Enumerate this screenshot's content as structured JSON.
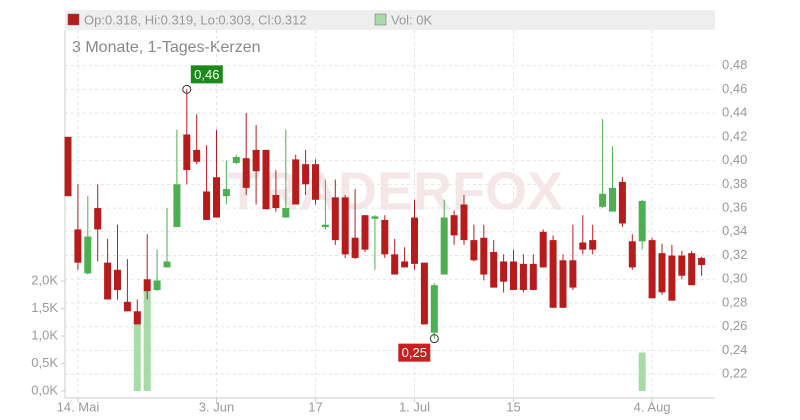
{
  "chart_data": {
    "type": "candlestick",
    "title": "3 Monate, 1-Tages-Kerzen",
    "legend": [
      "Op:0.318, Hi:0.319, Lo:0.303, Cl:0.312",
      "Vol: 0K"
    ],
    "watermark": "TRADERFOX",
    "up_color": "#4caf50",
    "down_color": "#b71c1c",
    "volume_color": "#a8dba8",
    "grid": true,
    "categories": [
      null,
      "14. Mai",
      null,
      null,
      null,
      null,
      null,
      null,
      null,
      null,
      null,
      null,
      null,
      null,
      null,
      "3. Jun",
      null,
      null,
      null,
      null,
      null,
      null,
      null,
      null,
      null,
      "17",
      null,
      null,
      null,
      null,
      null,
      null,
      null,
      null,
      null,
      "1. Jul",
      null,
      null,
      null,
      null,
      null,
      null,
      null,
      null,
      null,
      "15",
      null,
      null,
      null,
      null,
      null,
      null,
      null,
      null,
      null,
      null,
      null,
      null,
      null,
      "4. Aug",
      null,
      null,
      null,
      null,
      null
    ],
    "series": [
      {
        "name": "Open",
        "values": [
          0.42,
          0.342,
          0.305,
          0.36,
          0.314,
          0.308,
          0.281,
          0.273,
          0.3,
          0.291,
          0.31,
          0.344,
          0.422,
          0.409,
          0.374,
          0.386,
          0.37,
          0.398,
          0.402,
          0.409,
          0.409,
          0.371,
          0.352,
          0.401,
          0.397,
          0.397,
          0.344,
          0.369,
          0.369,
          0.335,
          0.354,
          0.351,
          0.35,
          0.321,
          0.315,
          0.352,
          0.314,
          0.255,
          0.304,
          0.354,
          0.363,
          0.333,
          0.335,
          0.323,
          0.315,
          0.315,
          0.313,
          0.313,
          0.34,
          0.333,
          0.316,
          0.316,
          0.331,
          0.333,
          0.361,
          0.357,
          0.382,
          0.332,
          0.332,
          0.333,
          0.322,
          0.32,
          0.32,
          0.322,
          0.318
        ]
      },
      {
        "name": "High",
        "values": [
          0.42,
          0.38,
          0.37,
          0.38,
          0.334,
          0.346,
          0.317,
          0.283,
          0.338,
          0.325,
          0.36,
          0.426,
          0.46,
          0.439,
          0.413,
          0.426,
          0.4,
          0.405,
          0.44,
          0.43,
          0.409,
          0.392,
          0.426,
          0.405,
          0.409,
          0.401,
          0.384,
          0.384,
          0.371,
          0.376,
          0.354,
          0.354,
          0.354,
          0.334,
          0.327,
          0.367,
          0.314,
          0.297,
          0.367,
          0.358,
          0.371,
          0.346,
          0.346,
          0.333,
          0.321,
          0.325,
          0.321,
          0.321,
          0.342,
          0.337,
          0.321,
          0.346,
          0.354,
          0.346,
          0.435,
          0.412,
          0.386,
          0.338,
          0.367,
          0.335,
          0.33,
          0.329,
          0.324,
          0.324,
          0.319
        ]
      },
      {
        "name": "Low",
        "values": [
          0.37,
          0.308,
          0.304,
          0.315,
          0.283,
          0.283,
          0.273,
          0.262,
          0.283,
          0.29,
          0.31,
          0.344,
          0.38,
          0.397,
          0.35,
          0.352,
          0.363,
          0.397,
          0.371,
          0.363,
          0.359,
          0.357,
          0.352,
          0.363,
          0.371,
          0.363,
          0.342,
          0.329,
          0.318,
          0.317,
          0.323,
          0.308,
          0.318,
          0.304,
          0.31,
          0.308,
          0.262,
          0.25,
          0.304,
          0.329,
          0.329,
          0.315,
          0.299,
          0.293,
          0.289,
          0.291,
          0.289,
          0.291,
          0.31,
          0.276,
          0.276,
          0.291,
          0.321,
          0.321,
          0.36,
          0.357,
          0.344,
          0.308,
          0.325,
          0.284,
          0.287,
          0.282,
          0.3,
          0.295,
          0.303
        ]
      },
      {
        "name": "Close",
        "values": [
          0.37,
          0.314,
          0.336,
          0.342,
          0.283,
          0.291,
          0.273,
          0.262,
          0.29,
          0.299,
          0.315,
          0.38,
          0.392,
          0.399,
          0.35,
          0.352,
          0.376,
          0.403,
          0.377,
          0.391,
          0.359,
          0.36,
          0.36,
          0.363,
          0.38,
          0.367,
          0.346,
          0.333,
          0.321,
          0.318,
          0.325,
          0.353,
          0.321,
          0.304,
          0.31,
          0.313,
          0.262,
          0.295,
          0.352,
          0.337,
          0.333,
          0.316,
          0.304,
          0.293,
          0.298,
          0.291,
          0.291,
          0.291,
          0.31,
          0.276,
          0.276,
          0.293,
          0.325,
          0.325,
          0.372,
          0.377,
          0.347,
          0.31,
          0.366,
          0.284,
          0.289,
          0.282,
          0.303,
          0.295,
          0.312
        ]
      },
      {
        "name": "Vol",
        "axis": "y2",
        "values": [
          0,
          0,
          0,
          0,
          0,
          0,
          0,
          1450,
          1850,
          0,
          0,
          0,
          0,
          0,
          0,
          0,
          0,
          0,
          0,
          0,
          0,
          0,
          0,
          0,
          0,
          0,
          0,
          0,
          0,
          0,
          0,
          0,
          0,
          0,
          0,
          0,
          0,
          0,
          0,
          0,
          0,
          0,
          0,
          0,
          0,
          0,
          0,
          0,
          0,
          0,
          0,
          0,
          0,
          0,
          0,
          0,
          0,
          0,
          700,
          0,
          0,
          0,
          0,
          0,
          0
        ]
      }
    ],
    "ylim": [
      0.2,
      0.51
    ],
    "yticks": [
      {
        "value": 0.22,
        "label": "0,22"
      },
      {
        "value": 0.24,
        "label": "0,24"
      },
      {
        "value": 0.26,
        "label": "0,26"
      },
      {
        "value": 0.28,
        "label": "0,28"
      },
      {
        "value": 0.3,
        "label": "0,30"
      },
      {
        "value": 0.32,
        "label": "0,32"
      },
      {
        "value": 0.34,
        "label": "0,34"
      },
      {
        "value": 0.36,
        "label": "0,36"
      },
      {
        "value": 0.38,
        "label": "0,38"
      },
      {
        "value": 0.4,
        "label": "0,40"
      },
      {
        "value": 0.42,
        "label": "0,42"
      },
      {
        "value": 0.44,
        "label": "0,44"
      },
      {
        "value": 0.46,
        "label": "0,46"
      },
      {
        "value": 0.48,
        "label": "0,48"
      }
    ],
    "y2lim": [
      0,
      6500
    ],
    "y2ticks": [
      {
        "value": 0,
        "label": "0,0K"
      },
      {
        "value": 500,
        "label": "0,5K"
      },
      {
        "value": 1000,
        "label": "1,0K"
      },
      {
        "value": 1500,
        "label": "1,5K"
      },
      {
        "value": 2000,
        "label": "2,0K"
      }
    ],
    "annotations": [
      {
        "label": "0,46",
        "value": 0.46,
        "kind": "high"
      },
      {
        "label": "0,25",
        "value": 0.25,
        "kind": "low"
      }
    ]
  }
}
